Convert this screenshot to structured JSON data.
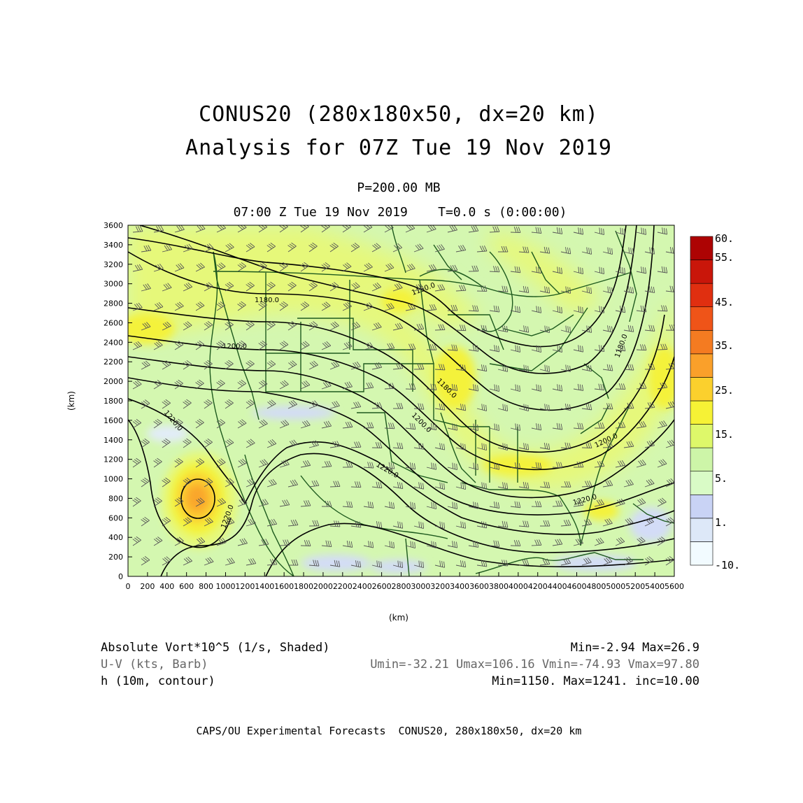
{
  "header": {
    "title_line1": "CONUS20 (280x180x50, dx=20 km)",
    "title_line2": "Analysis for 07Z Tue 19 Nov 2019",
    "level": "P=200.00 MB",
    "valid_time": "07:00 Z Tue 19 Nov 2019    T=0.0 s (0:00:00)"
  },
  "axes": {
    "x_label": "(km)",
    "y_label": "(km)",
    "x_range": [
      0,
      5600
    ],
    "y_range": [
      0,
      3600
    ],
    "x_ticks": [
      "0",
      "200",
      "400",
      "600",
      "800",
      "1000",
      "1200",
      "1400",
      "1600",
      "1800",
      "2000",
      "2200",
      "2400",
      "2600",
      "2800",
      "3000",
      "3200",
      "3400",
      "3600",
      "3800",
      "4000",
      "4200",
      "4400",
      "4600",
      "4800",
      "5000",
      "5200",
      "5400",
      "5600"
    ],
    "y_ticks": [
      "0",
      "200",
      "400",
      "600",
      "800",
      "1000",
      "1200",
      "1400",
      "1600",
      "1800",
      "2000",
      "2200",
      "2400",
      "2600",
      "2800",
      "3000",
      "3200",
      "3400",
      "3600"
    ]
  },
  "colorbar": {
    "labels": [
      "60.",
      "55.",
      "45.",
      "35.",
      "25.",
      "15.",
      "5.",
      "1.",
      "-10."
    ],
    "colors": [
      "#f2fbff",
      "#dde8f8",
      "#c9d3f5",
      "#d9fbc6",
      "#cdf5a8",
      "#def86a",
      "#f6f235",
      "#fbd02d",
      "#faa02a",
      "#f47b21",
      "#ef5418",
      "#e02f10",
      "#c9160a",
      "#ad0303"
    ]
  },
  "contours": [
    {
      "label": "1180.0"
    },
    {
      "label": "1150.0"
    },
    {
      "label": "1200.0"
    },
    {
      "label": "1180.0"
    },
    {
      "label": "1200.0"
    },
    {
      "label": "1220.0"
    },
    {
      "label": "1180.0"
    },
    {
      "label": "1200.0"
    },
    {
      "label": "1220.0"
    },
    {
      "label": "1220.0"
    },
    {
      "label": "1220.0"
    }
  ],
  "info": {
    "row1_left": "Absolute Vort*10^5 (1/s, Shaded)",
    "row1_right": "Min=-2.94 Max=26.9",
    "row2_left": "U-V (kts, Barb)",
    "row2_right": "Umin=-32.21 Umax=106.16 Vmin=-74.93 Vmax=97.80",
    "row3_left": "h (10m, contour)",
    "row3_right": "Min=1150. Max=1241. inc=10.00"
  },
  "footer": "CAPS/OU Experimental Forecasts  CONUS20, 280x180x50, dx=20 km",
  "map_colors": {
    "base": "#d4f7b0",
    "yellow": "#e6f87a",
    "yellow2": "#f4f23a",
    "orange": "#fbce30",
    "orange2": "#f9a62a",
    "blue": "#d3dcf7",
    "border": "#1e5a1e"
  }
}
